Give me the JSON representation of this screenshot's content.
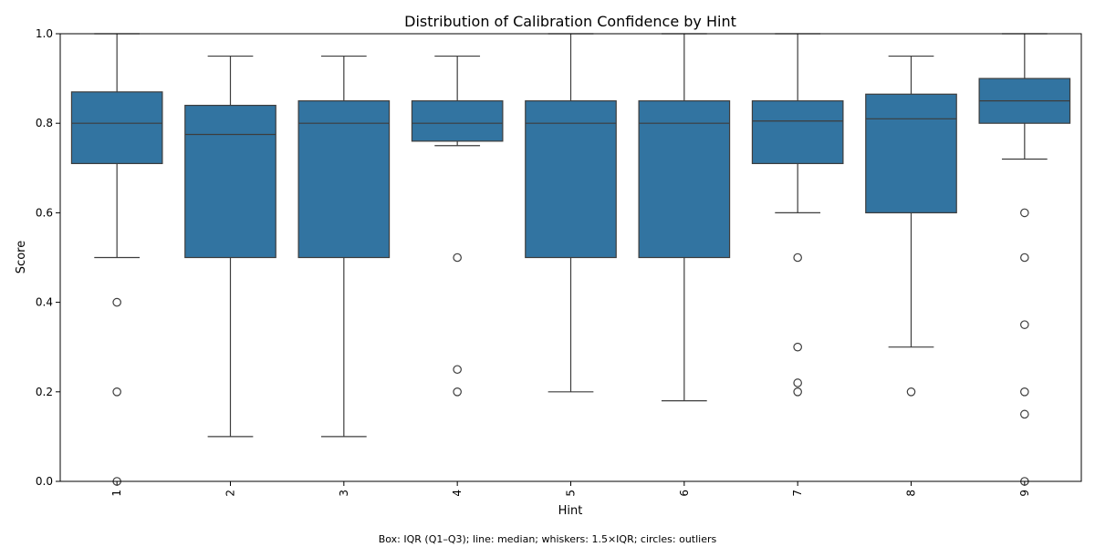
{
  "chart_data": {
    "type": "box",
    "title": "Distribution of Calibration Confidence by Hint",
    "xlabel": "Hint",
    "ylabel": "Score",
    "caption": "Box: IQR (Q1–Q3); line: median; whiskers: 1.5×IQR; circles: outliers",
    "ylim": [
      0,
      1.0
    ],
    "yticks": [
      "0.0",
      "0.2",
      "0.4",
      "0.6",
      "0.8",
      "1.0"
    ],
    "grid": false,
    "colors": {
      "box": "#3274a1",
      "line": "#3d3d3d"
    },
    "categories": [
      "1",
      "2",
      "3",
      "4",
      "5",
      "6",
      "7",
      "8",
      "9"
    ],
    "boxes": [
      {
        "category": "1",
        "whisker_low": 0.5,
        "q1": 0.71,
        "median": 0.8,
        "q3": 0.87,
        "whisker_high": 1.0,
        "outliers": [
          0.4,
          0.2,
          0.0
        ]
      },
      {
        "category": "2",
        "whisker_low": 0.1,
        "q1": 0.5,
        "median": 0.775,
        "q3": 0.84,
        "whisker_high": 0.95,
        "outliers": []
      },
      {
        "category": "3",
        "whisker_low": 0.1,
        "q1": 0.5,
        "median": 0.8,
        "q3": 0.85,
        "whisker_high": 0.95,
        "outliers": []
      },
      {
        "category": "4",
        "whisker_low": 0.75,
        "q1": 0.76,
        "median": 0.8,
        "q3": 0.85,
        "whisker_high": 0.95,
        "outliers": [
          0.5,
          0.25,
          0.2
        ]
      },
      {
        "category": "5",
        "whisker_low": 0.2,
        "q1": 0.5,
        "median": 0.8,
        "q3": 0.85,
        "whisker_high": 1.0,
        "outliers": []
      },
      {
        "category": "6",
        "whisker_low": 0.18,
        "q1": 0.5,
        "median": 0.8,
        "q3": 0.85,
        "whisker_high": 1.0,
        "outliers": []
      },
      {
        "category": "7",
        "whisker_low": 0.6,
        "q1": 0.71,
        "median": 0.805,
        "q3": 0.85,
        "whisker_high": 1.0,
        "outliers": [
          0.5,
          0.3,
          0.22,
          0.2
        ]
      },
      {
        "category": "8",
        "whisker_low": 0.3,
        "q1": 0.6,
        "median": 0.81,
        "q3": 0.865,
        "whisker_high": 0.95,
        "outliers": [
          0.2
        ]
      },
      {
        "category": "9",
        "whisker_low": 0.72,
        "q1": 0.8,
        "median": 0.85,
        "q3": 0.9,
        "whisker_high": 1.0,
        "outliers": [
          0.6,
          0.5,
          0.35,
          0.2,
          0.15,
          0.0
        ]
      }
    ]
  }
}
